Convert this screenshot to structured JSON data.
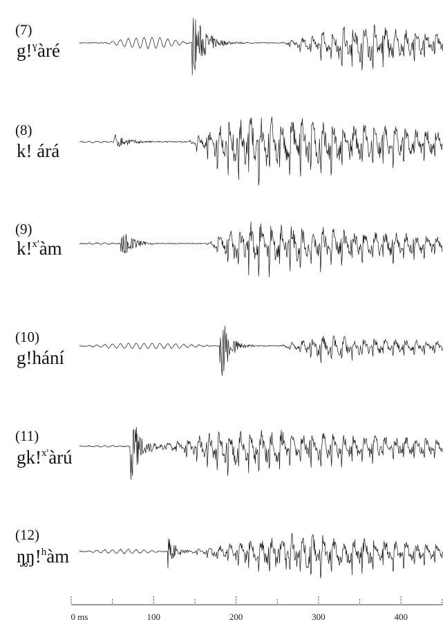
{
  "figure": {
    "items": [
      {
        "number": "(7)",
        "word": [
          "g!",
          "ɣ",
          "àré"
        ]
      },
      {
        "number": "(8)",
        "word": [
          "k! árá"
        ]
      },
      {
        "number": "(9)",
        "word": [
          "k!",
          "x'",
          "àm"
        ]
      },
      {
        "number": "(10)",
        "word": [
          "g!hání"
        ]
      },
      {
        "number": "(11)",
        "word": [
          "gk!",
          "x'",
          "àrú"
        ]
      },
      {
        "number": "(12)",
        "word": [
          "ŋ̥ŋ!",
          "h",
          "àm"
        ]
      }
    ],
    "time_axis": {
      "labels": [
        "0 ms",
        "100",
        "200",
        "300",
        "400"
      ]
    }
  }
}
